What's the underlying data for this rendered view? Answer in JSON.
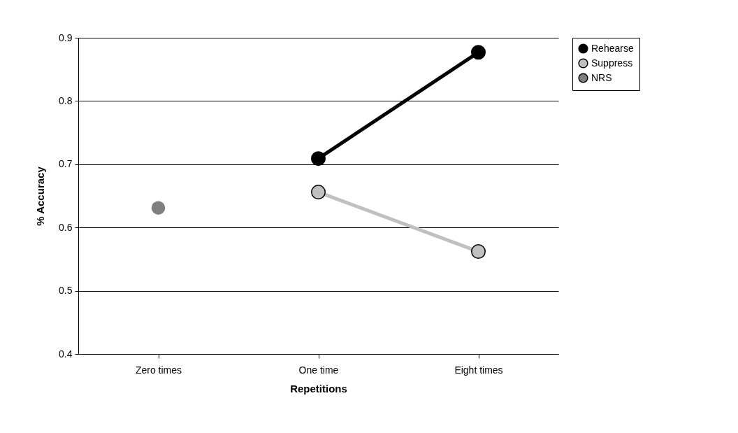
{
  "chart_data": {
    "type": "line",
    "xlabel": "Repetitions",
    "ylabel": "% Accuracy",
    "categories": [
      "Zero times",
      "One time",
      "Eight times"
    ],
    "series": [
      {
        "name": "Rehearse",
        "color": "#000000",
        "values": [
          null,
          0.709,
          0.877
        ]
      },
      {
        "name": "Suppress",
        "color": "#c0c0c0",
        "values": [
          null,
          0.656,
          0.562
        ]
      },
      {
        "name": "NRS",
        "type": "scatter",
        "color": "#808080",
        "values": [
          0.631,
          null,
          null
        ]
      }
    ],
    "ylim": [
      0.4,
      0.9
    ],
    "yticks": [
      0.4,
      0.5,
      0.6,
      0.7,
      0.8,
      0.9
    ],
    "grid": "y",
    "legend": "right",
    "marker": "circle"
  }
}
